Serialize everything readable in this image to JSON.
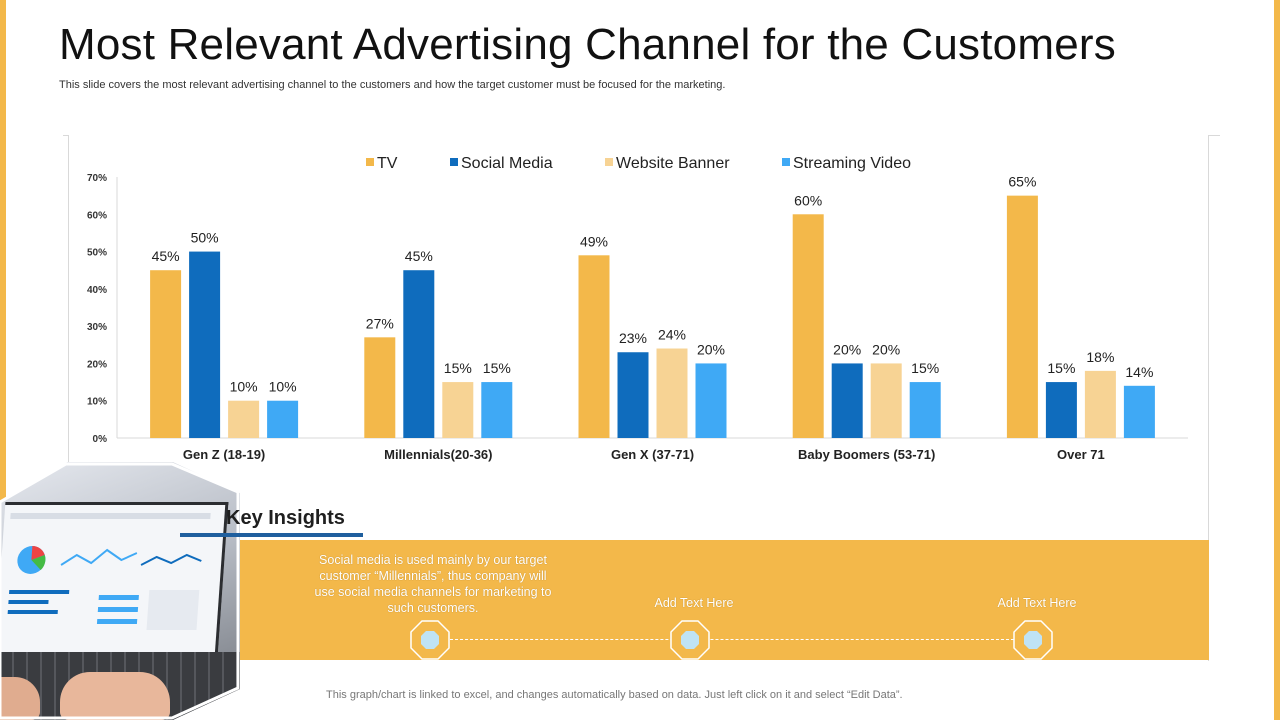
{
  "title": "Most Relevant Advertising Channel for the Customers",
  "subtitle": "This slide covers the most relevant advertising channel to the customers and how the target customer must be focused for the marketing.",
  "chart_data": {
    "type": "bar",
    "categories": [
      "Gen Z (18-19)",
      "Millennials(20-36)",
      "Gen X (37-71)",
      "Baby Boomers (53-71)",
      "Over 71"
    ],
    "series": [
      {
        "name": "TV",
        "color": "#F3B84A",
        "values": [
          45,
          27,
          49,
          60,
          65
        ]
      },
      {
        "name": "Social Media",
        "color": "#0F6CBD",
        "values": [
          50,
          45,
          23,
          20,
          15
        ]
      },
      {
        "name": "Website Banner",
        "color": "#F7D394",
        "values": [
          10,
          15,
          24,
          20,
          18
        ]
      },
      {
        "name": "Streaming Video",
        "color": "#3FA9F5",
        "values": [
          10,
          15,
          20,
          15,
          14
        ]
      }
    ],
    "value_suffix": "%",
    "ylim": [
      0,
      70
    ],
    "yticks": [
      "0%",
      "10%",
      "20%",
      "30%",
      "40%",
      "50%",
      "60%",
      "70%"
    ],
    "legend_position": "top",
    "grid": false
  },
  "insights": {
    "title": "Key Insights",
    "items": [
      "Social media is used mainly by our target customer “Millennials”, thus company will use social media channels for marketing to such customers.",
      "Add Text Here",
      "Add Text Here"
    ]
  },
  "footer": "This graph/chart is linked to excel, and changes automatically based on data. Just left click on it and select “Edit Data”.",
  "colors": {
    "accent": "#F3B84A",
    "dark_blue": "#1F5F9E"
  }
}
